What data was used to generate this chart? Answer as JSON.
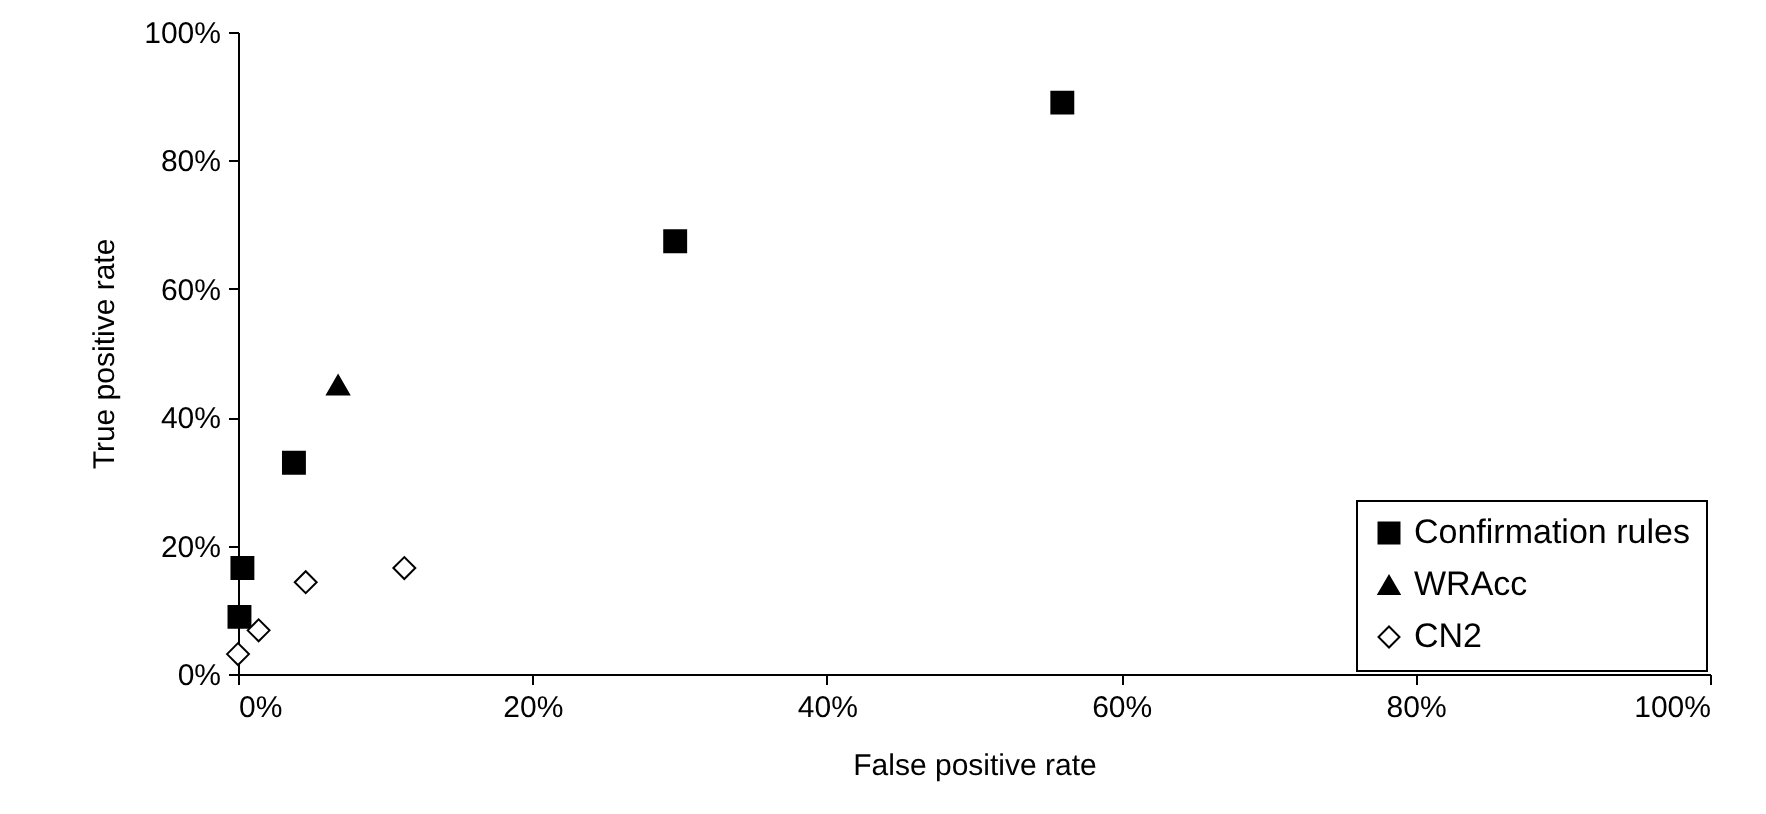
{
  "chart_data": {
    "type": "scatter",
    "xlabel": "False positive rate",
    "ylabel": "True positive rate",
    "xlim": [
      0,
      100
    ],
    "ylim": [
      0,
      100
    ],
    "xticks": [
      {
        "value": 0,
        "label": "0%"
      },
      {
        "value": 20,
        "label": "20%"
      },
      {
        "value": 40,
        "label": "40%"
      },
      {
        "value": 60,
        "label": "60%"
      },
      {
        "value": 80,
        "label": "80%"
      },
      {
        "value": 100,
        "label": "100%"
      }
    ],
    "yticks": [
      {
        "value": 0,
        "label": "0%"
      },
      {
        "value": 20,
        "label": "20%"
      },
      {
        "value": 40,
        "label": "40%"
      },
      {
        "value": 60,
        "label": "60%"
      },
      {
        "value": 80,
        "label": "80%"
      },
      {
        "value": 100,
        "label": "100%"
      }
    ],
    "grid": false,
    "legend": "bottom right",
    "series": [
      {
        "name": "Confirmation rules",
        "color": "#000000",
        "marker": "square",
        "x": [
          0.1,
          0.3,
          3.8,
          29.7,
          56
        ],
        "values": [
          8.9,
          16.5,
          32.9,
          67.4,
          89
        ]
      },
      {
        "name": "WRAcc",
        "color": "#000000",
        "marker": "triangle",
        "x": [
          6.8
        ],
        "values": [
          45
        ]
      },
      {
        "name": "CN2",
        "color": "#ffffff",
        "marker": "diamond",
        "x": [
          0,
          1.4,
          4.6,
          11.3
        ],
        "values": [
          3.1,
          6.8,
          14.3,
          16.5
        ]
      }
    ]
  }
}
